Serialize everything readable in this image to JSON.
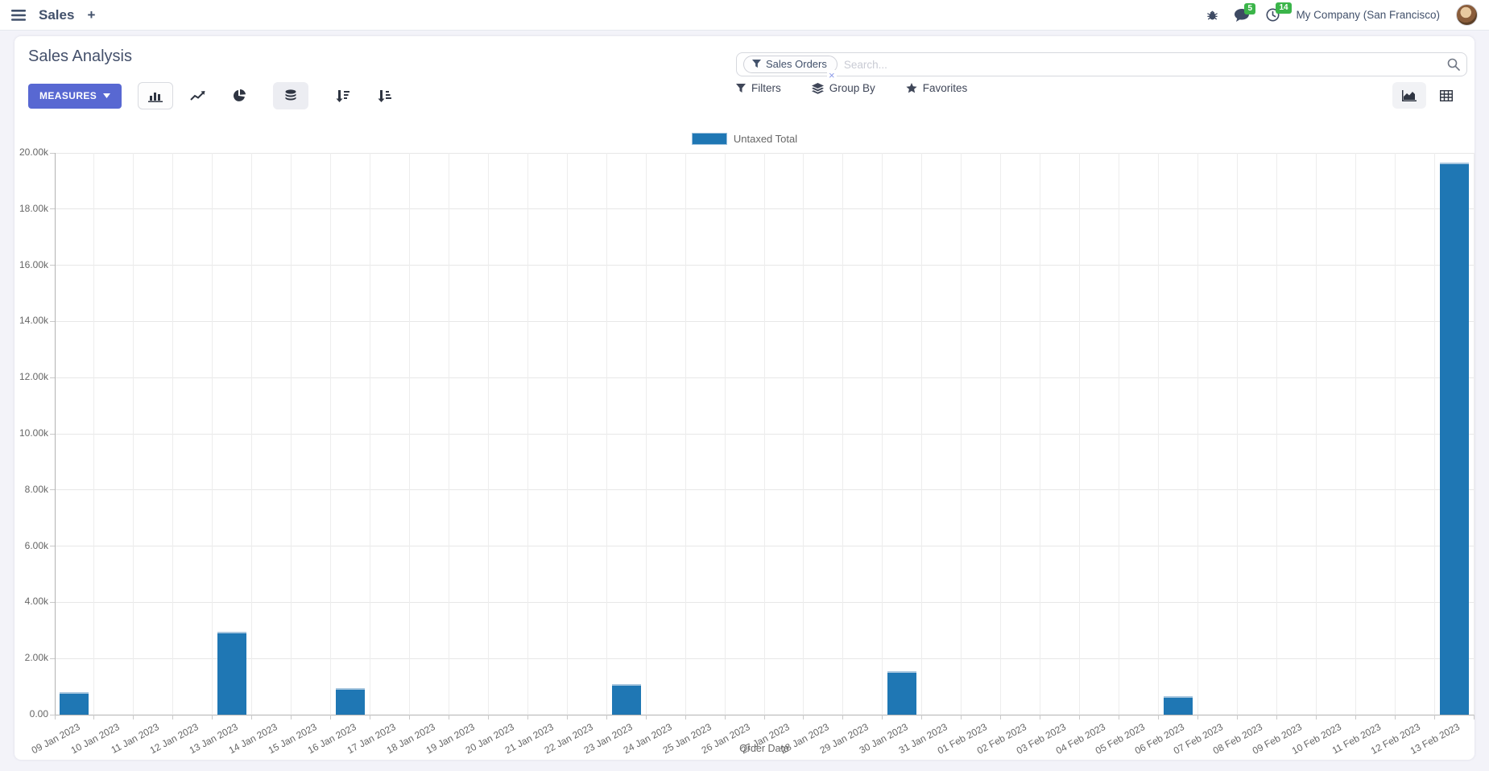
{
  "navbar": {
    "app_name": "Sales",
    "new_tab_label": "+",
    "chat_badge": "5",
    "activity_badge": "14",
    "company": "My Company (San Francisco)"
  },
  "control_panel": {
    "title": "Sales Analysis",
    "measures_label": "MEASURES",
    "search": {
      "facet_label": "Sales Orders",
      "remove_facet": "×",
      "placeholder": "Search..."
    },
    "filters_label": "Filters",
    "group_by_label": "Group By",
    "favorites_label": "Favorites"
  },
  "colors": {
    "accent_primary": "#5868d2",
    "badge_green": "#3bb54a",
    "bar_blue": "#1f77b4",
    "icon_dark": "#3e4a63"
  },
  "chart_data": {
    "type": "bar",
    "title": "",
    "legend": [
      {
        "label": "Untaxed Total",
        "color": "#1f77b4"
      }
    ],
    "legend_position": "top",
    "grid": true,
    "xlabel": "Order Date",
    "ylabel": "",
    "ylim": [
      0,
      20000
    ],
    "y_ticks": [
      "0.00",
      "2.00k",
      "4.00k",
      "6.00k",
      "8.00k",
      "10.00k",
      "12.00k",
      "14.00k",
      "16.00k",
      "18.00k",
      "20.00k"
    ],
    "categories": [
      "09 Jan 2023",
      "10 Jan 2023",
      "11 Jan 2023",
      "12 Jan 2023",
      "13 Jan 2023",
      "14 Jan 2023",
      "15 Jan 2023",
      "16 Jan 2023",
      "17 Jan 2023",
      "18 Jan 2023",
      "19 Jan 2023",
      "20 Jan 2023",
      "21 Jan 2023",
      "22 Jan 2023",
      "23 Jan 2023",
      "24 Jan 2023",
      "25 Jan 2023",
      "26 Jan 2023",
      "27 Jan 2023",
      "28 Jan 2023",
      "29 Jan 2023",
      "30 Jan 2023",
      "31 Jan 2023",
      "01 Feb 2023",
      "02 Feb 2023",
      "03 Feb 2023",
      "04 Feb 2023",
      "05 Feb 2023",
      "06 Feb 2023",
      "07 Feb 2023",
      "08 Feb 2023",
      "09 Feb 2023",
      "10 Feb 2023",
      "11 Feb 2023",
      "12 Feb 2023",
      "13 Feb 2023"
    ],
    "values": [
      800,
      0,
      0,
      0,
      2950,
      0,
      0,
      950,
      0,
      0,
      0,
      0,
      0,
      0,
      1080,
      0,
      0,
      0,
      0,
      0,
      0,
      1550,
      0,
      0,
      0,
      0,
      0,
      0,
      660,
      0,
      0,
      0,
      0,
      0,
      0,
      19650
    ],
    "bar_color": "#1f77b4"
  }
}
